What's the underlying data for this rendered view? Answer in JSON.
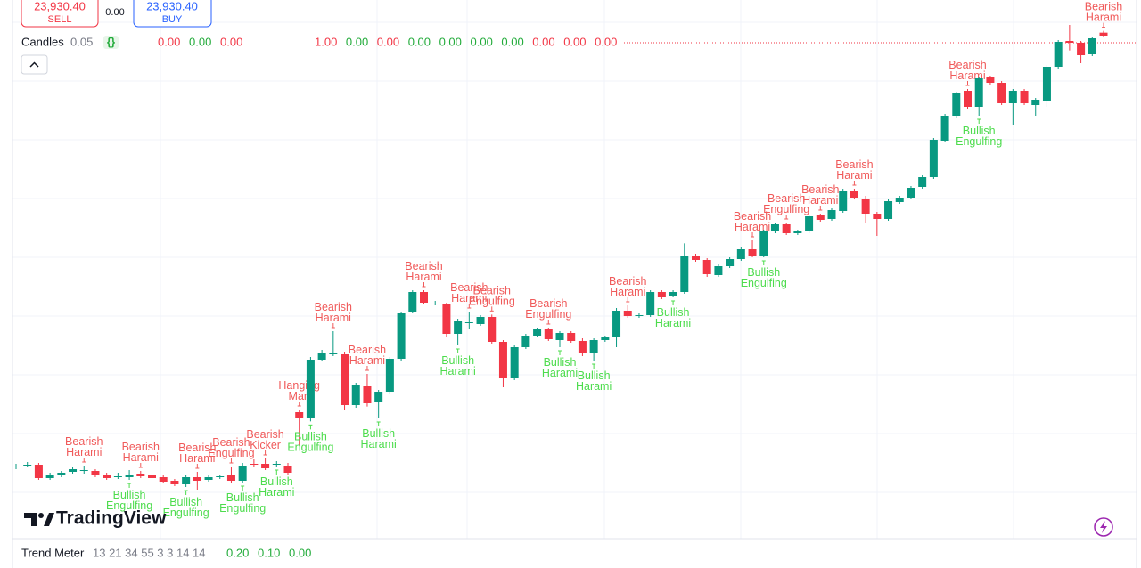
{
  "order_panel": {
    "sell_price": "23,930.40",
    "sell_label": "SELL",
    "spread": "0.00",
    "buy_price": "23,930.40",
    "buy_label": "BUY"
  },
  "legend": {
    "name": "Candles",
    "param": "0.05",
    "values": [
      {
        "text": "0.00",
        "color": "#f23645"
      },
      {
        "text": "0.00",
        "color": "#22ab3a"
      },
      {
        "text": "0.00",
        "color": "#f23645"
      },
      {
        "text": "1.00",
        "color": "#f23645"
      },
      {
        "text": "0.00",
        "color": "#22ab3a"
      },
      {
        "text": "0.00",
        "color": "#f23645"
      },
      {
        "text": "0.00",
        "color": "#22ab3a"
      },
      {
        "text": "0.00",
        "color": "#22ab3a"
      },
      {
        "text": "0.00",
        "color": "#22ab3a"
      },
      {
        "text": "0.00",
        "color": "#22ab3a"
      },
      {
        "text": "0.00",
        "color": "#f23645"
      },
      {
        "text": "0.00",
        "color": "#f23645"
      },
      {
        "text": "0.00",
        "color": "#f23645"
      }
    ]
  },
  "chart_data": {
    "type": "candlestick",
    "ylim": [
      22235,
      24050
    ],
    "up_color": "#089981",
    "down_color": "#f23645",
    "bearish_color": "#f05a5a",
    "bullish_color": "#4ddc4d",
    "open": [
      22478,
      22484,
      22484,
      22439,
      22448,
      22460,
      22466,
      22463,
      22451,
      22445,
      22442,
      22454,
      22448,
      22442,
      22430,
      22418,
      22442,
      22433,
      22442,
      22448,
      22430,
      22487,
      22487,
      22484,
      22481,
      22661,
      22640,
      22838,
      22859,
      22856,
      22685,
      22748,
      22694,
      22730,
      22841,
      23000,
      23066,
      23027,
      23024,
      22925,
      22964,
      22958,
      22982,
      22898,
      22775,
      22880,
      22919,
      22940,
      22904,
      22928,
      22901,
      22862,
      22904,
      22913,
      23003,
      22985,
      22988,
      23066,
      23054,
      23066,
      23186,
      23174,
      23123,
      23153,
      23177,
      23210,
      23189,
      23270,
      23294,
      23264,
      23270,
      23324,
      23312,
      23339,
      23408,
      23381,
      23330,
      23312,
      23369,
      23384,
      23420,
      23453,
      23576,
      23660,
      23744,
      23690,
      23789,
      23771,
      23702,
      23744,
      23696,
      23708,
      23825,
      23912,
      23906,
      23867,
      23940
    ],
    "high": [
      22487,
      22493,
      22490,
      22457,
      22463,
      22475,
      22481,
      22469,
      22457,
      22457,
      22466,
      22463,
      22454,
      22448,
      22436,
      22448,
      22460,
      22448,
      22451,
      22478,
      22490,
      22502,
      22505,
      22496,
      22490,
      22670,
      22847,
      22871,
      22934,
      22865,
      22760,
      22790,
      22736,
      22847,
      23000,
      23072,
      23072,
      23036,
      23030,
      22976,
      23000,
      22988,
      22990,
      22904,
      22886,
      22925,
      22946,
      22946,
      22934,
      22934,
      22910,
      22910,
      22919,
      23012,
      23021,
      22994,
      23072,
      23072,
      23072,
      23230,
      23195,
      23180,
      23159,
      23183,
      23216,
      23240,
      23276,
      23300,
      23300,
      23276,
      23327,
      23330,
      23348,
      23414,
      23414,
      23390,
      23336,
      23378,
      23390,
      23423,
      23459,
      23585,
      23666,
      23741,
      23750,
      23792,
      23795,
      23777,
      23750,
      23750,
      23720,
      23831,
      23915,
      23966,
      23912,
      23927,
      23946
    ],
    "low": [
      22469,
      22475,
      22433,
      22433,
      22442,
      22454,
      22454,
      22442,
      22433,
      22436,
      22433,
      22439,
      22433,
      22421,
      22412,
      22409,
      22400,
      22427,
      22436,
      22424,
      22424,
      22478,
      22466,
      22478,
      22451,
      22550,
      22630,
      22832,
      22850,
      22670,
      22676,
      22680,
      22640,
      22721,
      22835,
      22994,
      23024,
      23021,
      22916,
      22886,
      22940,
      22952,
      22892,
      22745,
      22769,
      22874,
      22913,
      22901,
      22880,
      22895,
      22850,
      22835,
      22898,
      22880,
      22979,
      22979,
      22982,
      23042,
      23048,
      23060,
      23168,
      23117,
      23117,
      23147,
      23171,
      23183,
      23183,
      23264,
      23258,
      23258,
      23264,
      23303,
      23306,
      23333,
      23378,
      23300,
      23255,
      23306,
      23363,
      23378,
      23414,
      23447,
      23570,
      23654,
      23684,
      23660,
      23765,
      23696,
      23630,
      23696,
      23660,
      23690,
      23819,
      23880,
      23837,
      23861,
      23924
    ],
    "close": [
      22478,
      22484,
      22439,
      22451,
      22457,
      22469,
      22466,
      22448,
      22439,
      22445,
      22451,
      22445,
      22439,
      22427,
      22418,
      22442,
      22430,
      22442,
      22445,
      22430,
      22481,
      22484,
      22472,
      22487,
      22457,
      22643,
      22838,
      22862,
      22859,
      22685,
      22751,
      22691,
      22730,
      22841,
      22994,
      23066,
      23030,
      23027,
      22925,
      22970,
      22964,
      22982,
      22898,
      22775,
      22880,
      22919,
      22940,
      22907,
      22928,
      22901,
      22862,
      22904,
      22913,
      23003,
      22985,
      22988,
      23066,
      23048,
      23066,
      23186,
      23174,
      23126,
      23153,
      23177,
      23210,
      23189,
      23270,
      23294,
      23264,
      23270,
      23321,
      23309,
      23342,
      23408,
      23384,
      23330,
      23312,
      23372,
      23384,
      23417,
      23453,
      23579,
      23660,
      23735,
      23690,
      23786,
      23771,
      23702,
      23744,
      23702,
      23714,
      23825,
      23909,
      23906,
      23864,
      23921,
      23930
    ],
    "patterns": [
      null,
      null,
      null,
      null,
      null,
      null,
      "Bearish Harami",
      null,
      null,
      null,
      "Bullish Engulfing",
      "Bearish Harami",
      null,
      null,
      null,
      "Bullish Engulfing",
      "Bearish Harami",
      null,
      null,
      "Bearish Engulfing",
      "Bullish Engulfing",
      null,
      "Bearish Kicker",
      "Bullish Harami",
      null,
      "Hanging Man",
      "Bullish Engulfing",
      null,
      "Bearish Harami",
      null,
      null,
      "Bearish Harami",
      "Bullish Harami",
      null,
      null,
      null,
      "Bearish Harami",
      null,
      null,
      "Bullish Harami",
      "Bearish Harami",
      null,
      "Bearish Engulfing",
      null,
      null,
      null,
      null,
      "Bearish Engulfing",
      "Bullish Harami",
      null,
      null,
      "Bullish Harami",
      null,
      null,
      "Bearish Harami",
      null,
      null,
      null,
      "Bullish Harami",
      null,
      null,
      null,
      null,
      null,
      null,
      "Bearish Harami",
      "Bullish Engulfing",
      null,
      "Bearish Engulfing",
      null,
      null,
      "Bearish Harami",
      null,
      null,
      "Bearish Harami",
      null,
      null,
      null,
      null,
      null,
      null,
      null,
      null,
      null,
      "Bearish Harami",
      "Bullish Engulfing",
      null,
      null,
      null,
      null,
      null,
      null,
      null,
      null,
      null,
      null,
      "Bearish Harami"
    ]
  },
  "indicator": {
    "name": "Trend Meter",
    "params": "13 21 34 55 3 3 14 14",
    "values": [
      "0.20",
      "0.10",
      "0.00"
    ]
  },
  "watermark": "TradingView"
}
